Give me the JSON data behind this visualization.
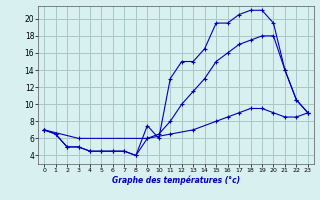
{
  "title": "Graphe des températures (°c)",
  "background_color": "#d8f0f0",
  "grid_color": "#a8c8c8",
  "line_color": "#0000bb",
  "xlim": [
    -0.5,
    23.5
  ],
  "ylim": [
    3,
    21.5
  ],
  "xticks": [
    0,
    1,
    2,
    3,
    4,
    5,
    6,
    7,
    8,
    9,
    10,
    11,
    12,
    13,
    14,
    15,
    16,
    17,
    18,
    19,
    20,
    21,
    22,
    23
  ],
  "yticks": [
    4,
    6,
    8,
    10,
    12,
    14,
    16,
    18,
    20
  ],
  "line1_x": [
    0,
    1,
    2,
    3,
    4,
    5,
    6,
    7,
    8,
    9,
    10,
    11,
    12,
    13,
    14,
    15,
    16,
    17,
    18,
    19,
    20,
    21,
    22,
    23
  ],
  "line1_y": [
    7,
    6.5,
    5,
    5,
    4.5,
    4.5,
    4.5,
    4.5,
    4,
    7.5,
    6,
    13,
    15,
    15,
    16.5,
    19.5,
    19.5,
    20.5,
    21,
    21,
    19.5,
    14,
    10.5,
    9
  ],
  "line2_x": [
    0,
    1,
    2,
    3,
    4,
    5,
    6,
    7,
    8,
    9,
    10,
    11,
    12,
    13,
    14,
    15,
    16,
    17,
    18,
    19,
    20,
    21,
    22,
    23
  ],
  "line2_y": [
    7,
    6.5,
    5,
    5,
    4.5,
    4.5,
    4.5,
    4.5,
    4,
    6,
    6.5,
    8,
    10,
    11.5,
    13,
    15,
    16,
    17,
    17.5,
    18,
    18,
    14,
    10.5,
    9
  ],
  "line3_x": [
    0,
    3,
    9,
    11,
    13,
    15,
    16,
    17,
    18,
    19,
    20,
    21,
    22,
    23
  ],
  "line3_y": [
    7,
    6,
    6,
    6.5,
    7,
    8,
    8.5,
    9,
    9.5,
    9.5,
    9,
    8.5,
    8.5,
    9
  ]
}
